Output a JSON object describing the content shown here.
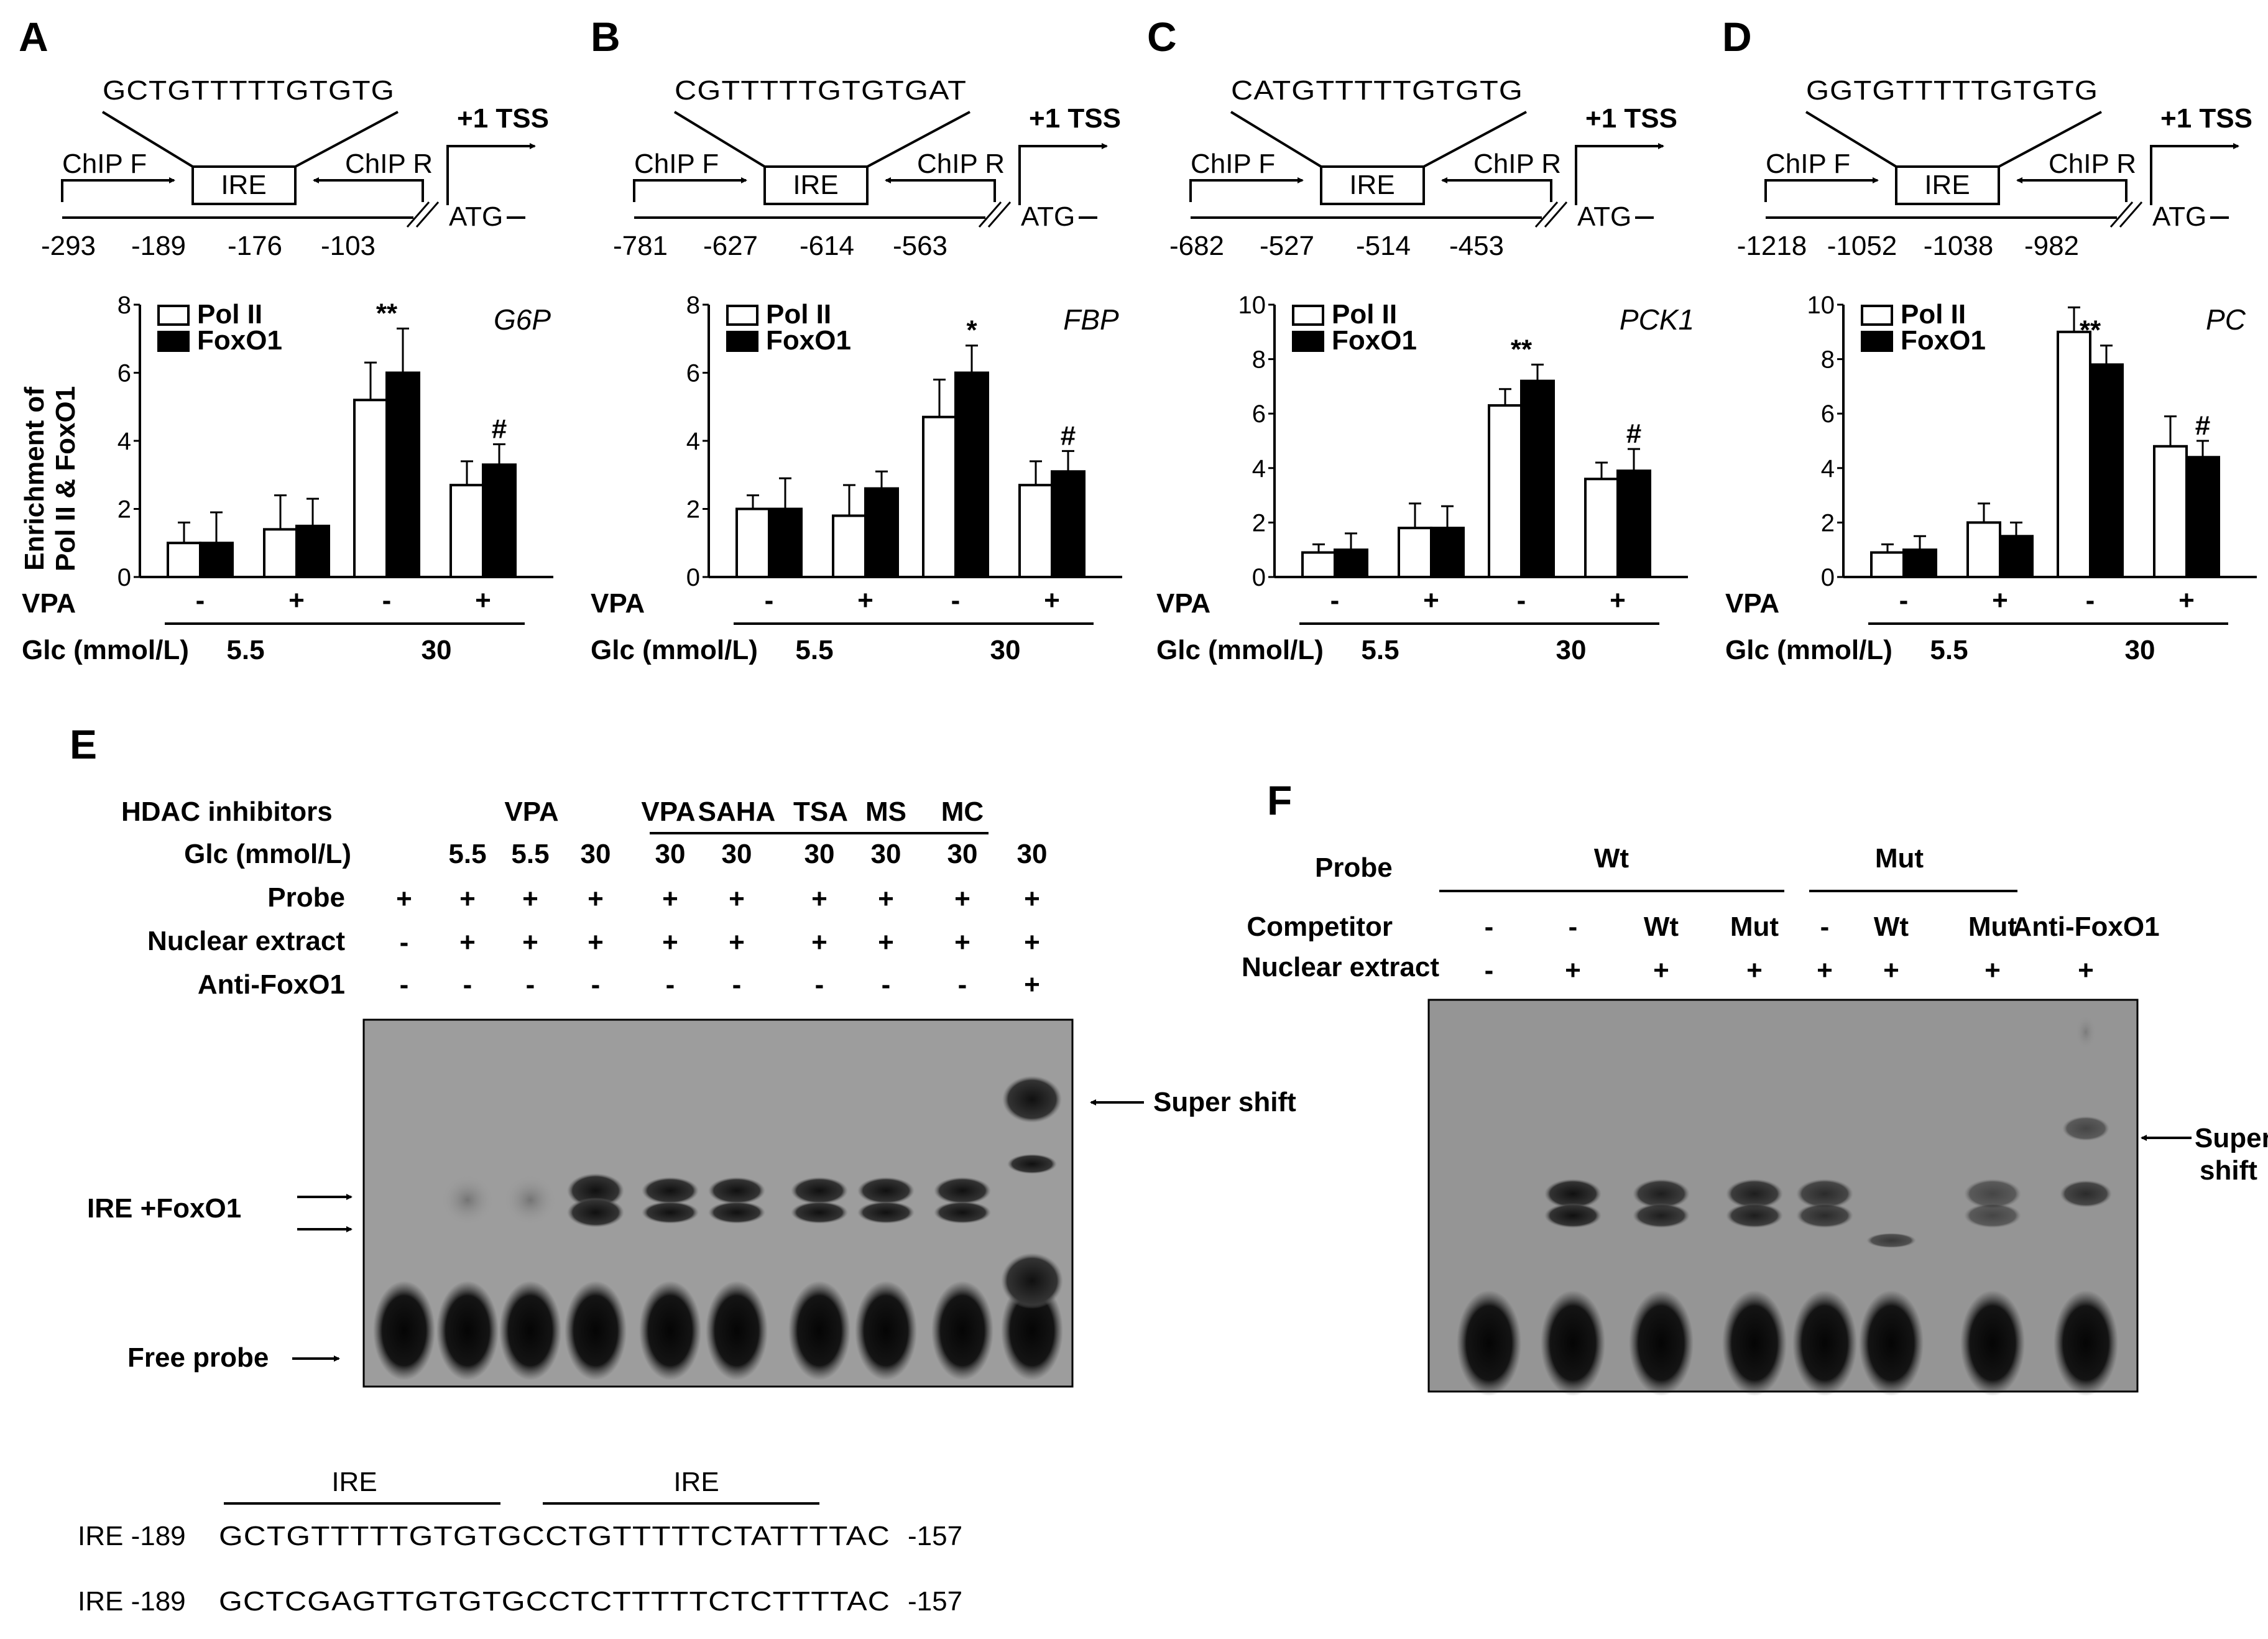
{
  "panels": {
    "A": {
      "letter": "A",
      "sequence": "GCTGTTTTTGTGTG",
      "tss": "+1 TSS",
      "chip_f": "ChIP F",
      "chip_r": "ChIP R",
      "ire": "IRE",
      "atg": "ATG",
      "positions": [
        "-293",
        "-189",
        "-176",
        "-103"
      ]
    },
    "B": {
      "letter": "B",
      "sequence": "CGTTTTTGTGTGAT",
      "tss": "+1 TSS",
      "chip_f": "ChIP F",
      "chip_r": "ChIP R",
      "ire": "IRE",
      "atg": "ATG",
      "positions": [
        "-781",
        "-627",
        "-614",
        "-563"
      ]
    },
    "C": {
      "letter": "C",
      "sequence": "CATGTTTTTGTGTG",
      "tss": "+1 TSS",
      "chip_f": "ChIP F",
      "chip_r": "ChIP R",
      "ire": "IRE",
      "atg": "ATG",
      "positions": [
        "-682",
        "-527",
        "-514",
        "-453"
      ]
    },
    "D": {
      "letter": "D",
      "sequence": "GGTGTTTTTGTGTG",
      "tss": "+1 TSS",
      "chip_f": "ChIP F",
      "chip_r": "ChIP R",
      "ire": "IRE",
      "atg": "ATG",
      "positions": [
        "-1218",
        "-1052",
        "-1038",
        "-982"
      ]
    }
  },
  "shared_labels": {
    "y_axis_line1": "Enrichment of",
    "y_axis_line2": "Pol II & FoxO1",
    "vpa": "VPA",
    "glc": "Glc (mmol/L)",
    "glc_low": "5.5",
    "glc_high": "30",
    "minus": "-",
    "plus": "+"
  },
  "chart_data": [
    {
      "type": "bar",
      "gene": "G6P",
      "categories": [
        "- / 5.5",
        "+ / 5.5",
        "- / 30",
        "+ / 30"
      ],
      "series": [
        {
          "name": "Pol II",
          "values": [
            1.0,
            1.4,
            5.2,
            2.7
          ],
          "errors": [
            0.6,
            1.0,
            1.1,
            0.7
          ],
          "color": "#ffffff"
        },
        {
          "name": "FoxO1",
          "values": [
            1.0,
            1.5,
            6.0,
            3.3
          ],
          "errors": [
            0.9,
            0.8,
            1.3,
            0.6
          ],
          "color": "#000000"
        }
      ],
      "annotations": [
        {
          "category": 2,
          "series": 1,
          "text": "**"
        },
        {
          "category": 3,
          "series": 1,
          "text": "#"
        }
      ],
      "ylim": [
        0,
        8
      ],
      "yticks": [
        "0",
        "2",
        "4",
        "6",
        "8"
      ]
    },
    {
      "type": "bar",
      "gene": "FBP",
      "categories": [
        "- / 5.5",
        "+ / 5.5",
        "- / 30",
        "+ / 30"
      ],
      "series": [
        {
          "name": "Pol II",
          "values": [
            2.0,
            1.8,
            4.7,
            2.7
          ],
          "errors": [
            0.4,
            0.9,
            1.1,
            0.7
          ],
          "color": "#ffffff"
        },
        {
          "name": "FoxO1",
          "values": [
            2.0,
            2.6,
            6.0,
            3.1
          ],
          "errors": [
            0.9,
            0.5,
            0.8,
            0.6
          ],
          "color": "#000000"
        }
      ],
      "annotations": [
        {
          "category": 2,
          "series": 1,
          "text": "*"
        },
        {
          "category": 3,
          "series": 1,
          "text": "#"
        }
      ],
      "ylim": [
        0,
        8
      ],
      "yticks": [
        "0",
        "2",
        "4",
        "6",
        "8"
      ]
    },
    {
      "type": "bar",
      "gene": "PCK1",
      "categories": [
        "- / 5.5",
        "+ / 5.5",
        "- / 30",
        "+ / 30"
      ],
      "series": [
        {
          "name": "Pol II",
          "values": [
            0.9,
            1.8,
            6.3,
            3.6
          ],
          "errors": [
            0.3,
            0.9,
            0.6,
            0.6
          ],
          "color": "#ffffff"
        },
        {
          "name": "FoxO1",
          "values": [
            1.0,
            1.8,
            7.2,
            3.9
          ],
          "errors": [
            0.6,
            0.8,
            0.6,
            0.8
          ],
          "color": "#000000"
        }
      ],
      "annotations": [
        {
          "category": 2,
          "series": 1,
          "text": "**"
        },
        {
          "category": 3,
          "series": 1,
          "text": "#"
        }
      ],
      "ylim": [
        0,
        10
      ],
      "yticks": [
        "0",
        "2",
        "4",
        "6",
        "8",
        "10"
      ]
    },
    {
      "type": "bar",
      "gene": "PC",
      "categories": [
        "- / 5.5",
        "+ / 5.5",
        "- / 30",
        "+ / 30"
      ],
      "series": [
        {
          "name": "Pol II",
          "values": [
            0.9,
            2.0,
            9.0,
            4.8
          ],
          "errors": [
            0.3,
            0.7,
            0.9,
            1.1
          ],
          "color": "#ffffff"
        },
        {
          "name": "FoxO1",
          "values": [
            1.0,
            1.5,
            7.8,
            4.4
          ],
          "errors": [
            0.5,
            0.5,
            0.7,
            0.6
          ],
          "color": "#000000"
        }
      ],
      "annotations": [
        {
          "category": 2,
          "series": 1,
          "text": "**"
        },
        {
          "category": 3,
          "series": 1,
          "text": "#"
        }
      ],
      "ylim": [
        0,
        10
      ],
      "yticks": [
        "0",
        "2",
        "4",
        "6",
        "8",
        "10"
      ]
    }
  ],
  "panel_E": {
    "letter": "E",
    "row_labels": [
      "HDAC inhibitors",
      "Glc (mmol/L)",
      "Probe",
      "Nuclear extract",
      "Anti-FoxO1"
    ],
    "hdac_labels": [
      "VPA",
      "VPA",
      "SAHA",
      "TSA",
      "MS",
      "MC"
    ],
    "glc": [
      "5.5",
      "5.5",
      "30",
      "30",
      "30",
      "30",
      "30",
      "30",
      "30"
    ],
    "probe": [
      "+",
      "+",
      "+",
      "+",
      "+",
      "+",
      "+",
      "+",
      "+",
      "+"
    ],
    "nuclear": [
      "-",
      "+",
      "+",
      "+",
      "+",
      "+",
      "+",
      "+",
      "+",
      "+"
    ],
    "anti": [
      "-",
      "-",
      "-",
      "-",
      "-",
      "-",
      "-",
      "-",
      "-",
      "+"
    ],
    "super_shift": "Super shift",
    "ire_foxo1": "IRE +FoxO1",
    "free_probe": "Free probe",
    "ire_header": "IRE",
    "seq_rows": [
      {
        "name": "IRE -189",
        "seq": "GCTGTTTTTGTGTGCCTGTTTTTCTATTTTAC",
        "end": "-157"
      },
      {
        "name": "IRE -189",
        "seq": "GCTCGAGTTGTGTGCCTCTTTTTCTCTTTTAC",
        "end": "-157"
      }
    ]
  },
  "panel_F": {
    "letter": "F",
    "probe": "Probe",
    "wt": "Wt",
    "mut": "Mut",
    "competitor": "Competitor",
    "nuclear": "Nuclear extract",
    "competitors": [
      "-",
      "-",
      "Wt",
      "Mut",
      "-",
      "Wt",
      "Mut",
      "Anti-FoxO1"
    ],
    "nuclear_vals": [
      "-",
      "+",
      "+",
      "+",
      "+",
      "+",
      "+",
      "+"
    ],
    "super_shift_1": "Super",
    "super_shift_2": "shift"
  }
}
